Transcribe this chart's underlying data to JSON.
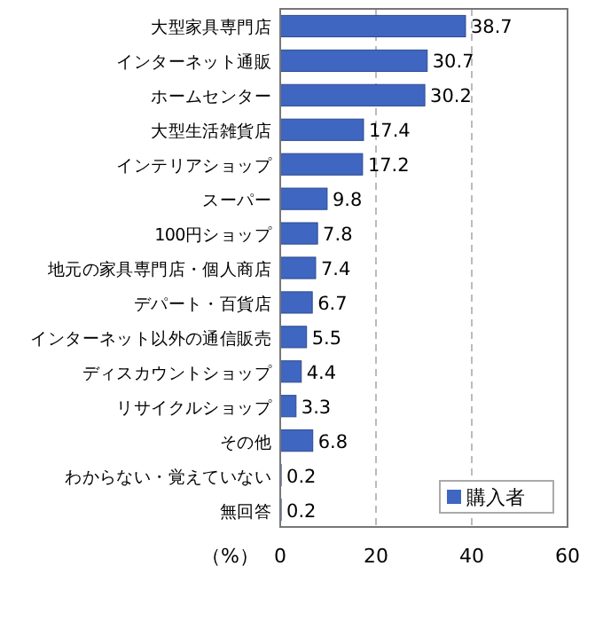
{
  "chart_data": {
    "type": "bar",
    "orientation": "horizontal",
    "categories": [
      "大型家具専門店",
      "インターネット通販",
      "ホームセンター",
      "大型生活雑貨店",
      "インテリアショップ",
      "スーパー",
      "100円ショップ",
      "地元の家具専門店・個人商店",
      "デパート・百貨店",
      "インターネット以外の通信販売",
      "ディスカウントショップ",
      "リサイクルショップ",
      "その他",
      "わからない・覚えていない",
      "無回答"
    ],
    "series": [
      {
        "name": "購入者",
        "color": "#3f66c0",
        "values": [
          38.7,
          30.7,
          30.2,
          17.4,
          17.2,
          9.8,
          7.8,
          7.4,
          6.7,
          5.5,
          4.4,
          3.3,
          6.8,
          0.2,
          0.2
        ]
      }
    ],
    "data_labels": true,
    "xlim": [
      0,
      60
    ],
    "xticks": [
      0,
      20,
      40,
      60
    ],
    "xlabel": "（%）",
    "grid": "x",
    "legend": "bottom right"
  }
}
